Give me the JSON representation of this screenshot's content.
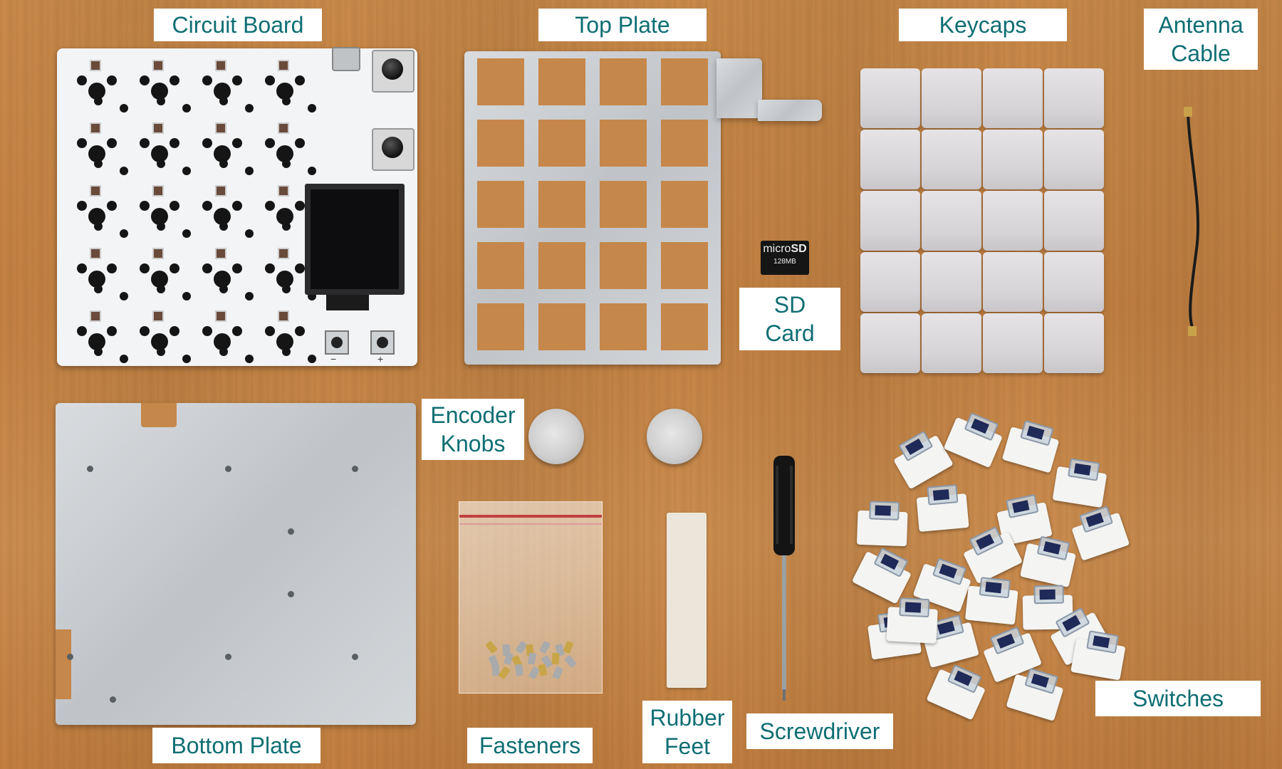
{
  "labels": {
    "circuit_board": "Circuit Board",
    "top_plate": "Top Plate",
    "keycaps": "Keycaps",
    "antenna_line1": "Antenna",
    "antenna_line2": "Cable",
    "sd_line1": "SD",
    "sd_line2": "Card",
    "encoder_line1": "Encoder",
    "encoder_line2": "Knobs",
    "bottom_plate": "Bottom Plate",
    "fasteners": "Fasteners",
    "rubber_line1": "Rubber",
    "rubber_line2": "Feet",
    "screwdriver": "Screwdriver",
    "switches": "Switches"
  },
  "sd_card": {
    "brand": "micro",
    "logo": "SD",
    "capacity": "128MB"
  },
  "pcb_marks": {
    "minus": "−",
    "plus": "+"
  },
  "colors": {
    "label_text": "#0e6e73",
    "label_bg": "#ffffff",
    "wood": "#c98a4a",
    "switch_stem_accent": "#1f2a58"
  }
}
